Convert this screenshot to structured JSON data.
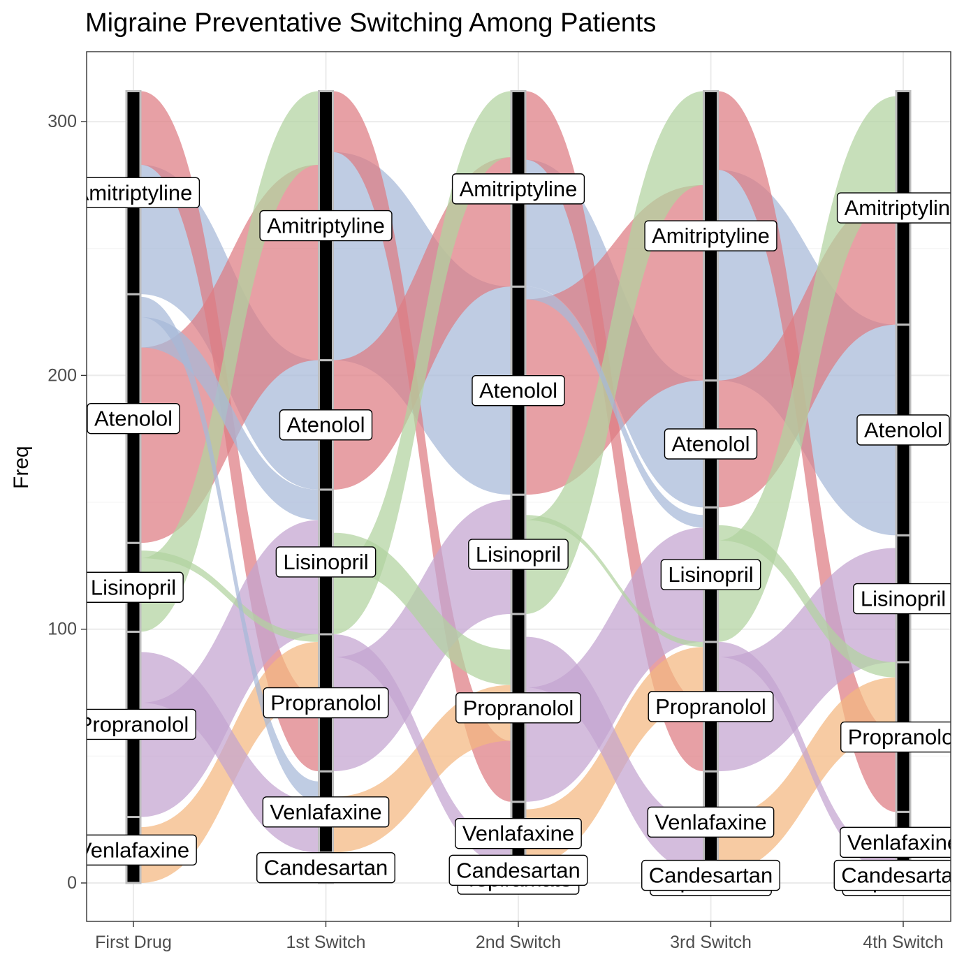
{
  "chart_data": {
    "type": "alluvial",
    "title": "Migraine Preventative Switching Among Patients",
    "xlabel": "",
    "ylabel": "Freq",
    "ylim": [
      -15,
      325
    ],
    "yticks": [
      0,
      100,
      200,
      300
    ],
    "grid": true,
    "axes": [
      "First Drug",
      "1st Switch",
      "2nd Switch",
      "3rd Switch",
      "4th Switch"
    ],
    "drug_colors": {
      "Amitriptyline": "#de7b82",
      "Atenolol": "#a6b9d8",
      "Lisinopril": "#b2d3a0",
      "Propranolol": "#c3a4d0",
      "Venlafaxine": "#f4b77f",
      "Candesartan": "#e9a0b0",
      "Topiramate": "#f7c9a0"
    },
    "strata": [
      {
        "axis": "First Drug",
        "drugs": [
          "Venlafaxine",
          "Propranolol",
          "Lisinopril",
          "Atenolol",
          "Amitriptyline"
        ],
        "values": [
          26,
          73,
          35,
          98,
          80
        ]
      },
      {
        "axis": "1st Switch",
        "drugs": [
          "Candesartan",
          "Venlafaxine",
          "Propranolol",
          "Lisinopril",
          "Atenolol",
          "Amitriptyline"
        ],
        "values": [
          12,
          32,
          54,
          57,
          51,
          106
        ]
      },
      {
        "axis": "2nd Switch",
        "drugs": [
          "Topiramate",
          "Candesartan",
          "Venlafaxine",
          "Propranolol",
          "Lisinopril",
          "Atenolol",
          "Amitriptyline"
        ],
        "values": [
          3,
          4,
          25,
          74,
          47,
          82,
          77
        ]
      },
      {
        "axis": "3rd Switch",
        "drugs": [
          "Topiramate",
          "Candesartan",
          "Venlafaxine",
          "Propranolol",
          "Lisinopril",
          "Atenolol",
          "Amitriptyline"
        ],
        "values": [
          2,
          2,
          40,
          51,
          53,
          50,
          114
        ]
      },
      {
        "axis": "4th Switch",
        "drugs": [
          "Topiramate",
          "Candesartan",
          "Venlafaxine",
          "Propranolol",
          "Lisinopril",
          "Atenolol",
          "Amitriptyline"
        ],
        "values": [
          2,
          2,
          24,
          59,
          50,
          83,
          92
        ]
      }
    ],
    "flows": [
      {
        "from": "Amitriptyline",
        "to": "Atenolol",
        "value": 106,
        "color": "#a6b9d8"
      },
      {
        "from": "Atenolol",
        "to": "Amitriptyline",
        "value": 77,
        "color": "#de7b82"
      },
      {
        "from": "Amitriptyline",
        "to": "Propranolol",
        "value": 60,
        "color": "#de7b82"
      },
      {
        "from": "Propranolol",
        "to": "Lisinopril",
        "value": 45,
        "color": "#c3a4d0"
      },
      {
        "from": "Lisinopril",
        "to": "Amitriptyline",
        "value": 40,
        "color": "#b2d3a0"
      },
      {
        "from": "Venlafaxine",
        "to": "Propranolol",
        "value": 22,
        "color": "#f4b77f"
      },
      {
        "from": "Propranolol",
        "to": "Venlafaxine",
        "value": 20,
        "color": "#c3a4d0"
      },
      {
        "from": "Atenolol",
        "to": "Lisinopril",
        "value": 18,
        "color": "#a6b9d8"
      },
      {
        "from": "Lisinopril",
        "to": "Propranolol",
        "value": 14,
        "color": "#b2d3a0"
      },
      {
        "from": "Venlafaxine",
        "to": "Atenolol",
        "value": 9,
        "color": "#f4b77f"
      },
      {
        "from": "Atenolol",
        "to": "Venlafaxine",
        "value": 8,
        "color": "#a6b9d8"
      },
      {
        "from": "Amitriptyline",
        "to": "Candesartan",
        "value": 4,
        "color": "#de7b82"
      }
    ]
  }
}
